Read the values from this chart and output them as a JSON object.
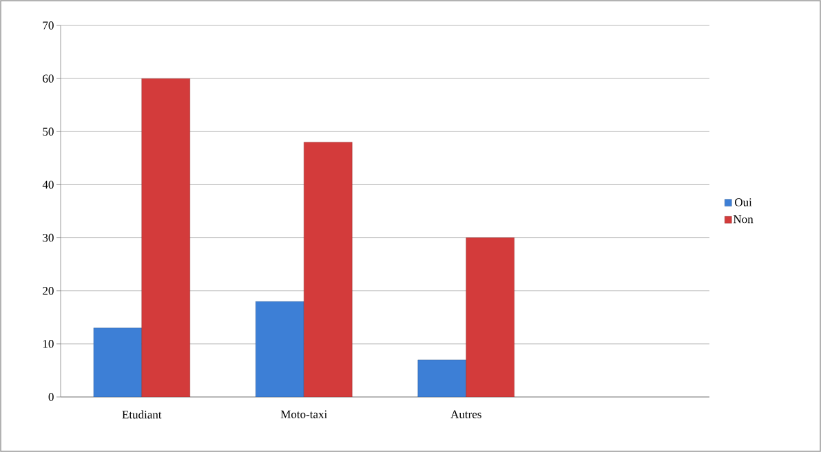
{
  "chart_data": {
    "type": "bar",
    "categories": [
      "Etudiant",
      "Moto-taxi",
      "Autres",
      null
    ],
    "series": [
      {
        "name": "Oui",
        "color": "#3d7fd6",
        "values": [
          13,
          18,
          7,
          null
        ]
      },
      {
        "name": "Non",
        "color": "#d33b3b",
        "values": [
          60,
          48,
          30,
          null
        ]
      }
    ],
    "ylim": [
      0,
      70
    ],
    "yticks": [
      0,
      10,
      20,
      30,
      40,
      50,
      60,
      70
    ],
    "grid": "y",
    "legend": "right"
  }
}
